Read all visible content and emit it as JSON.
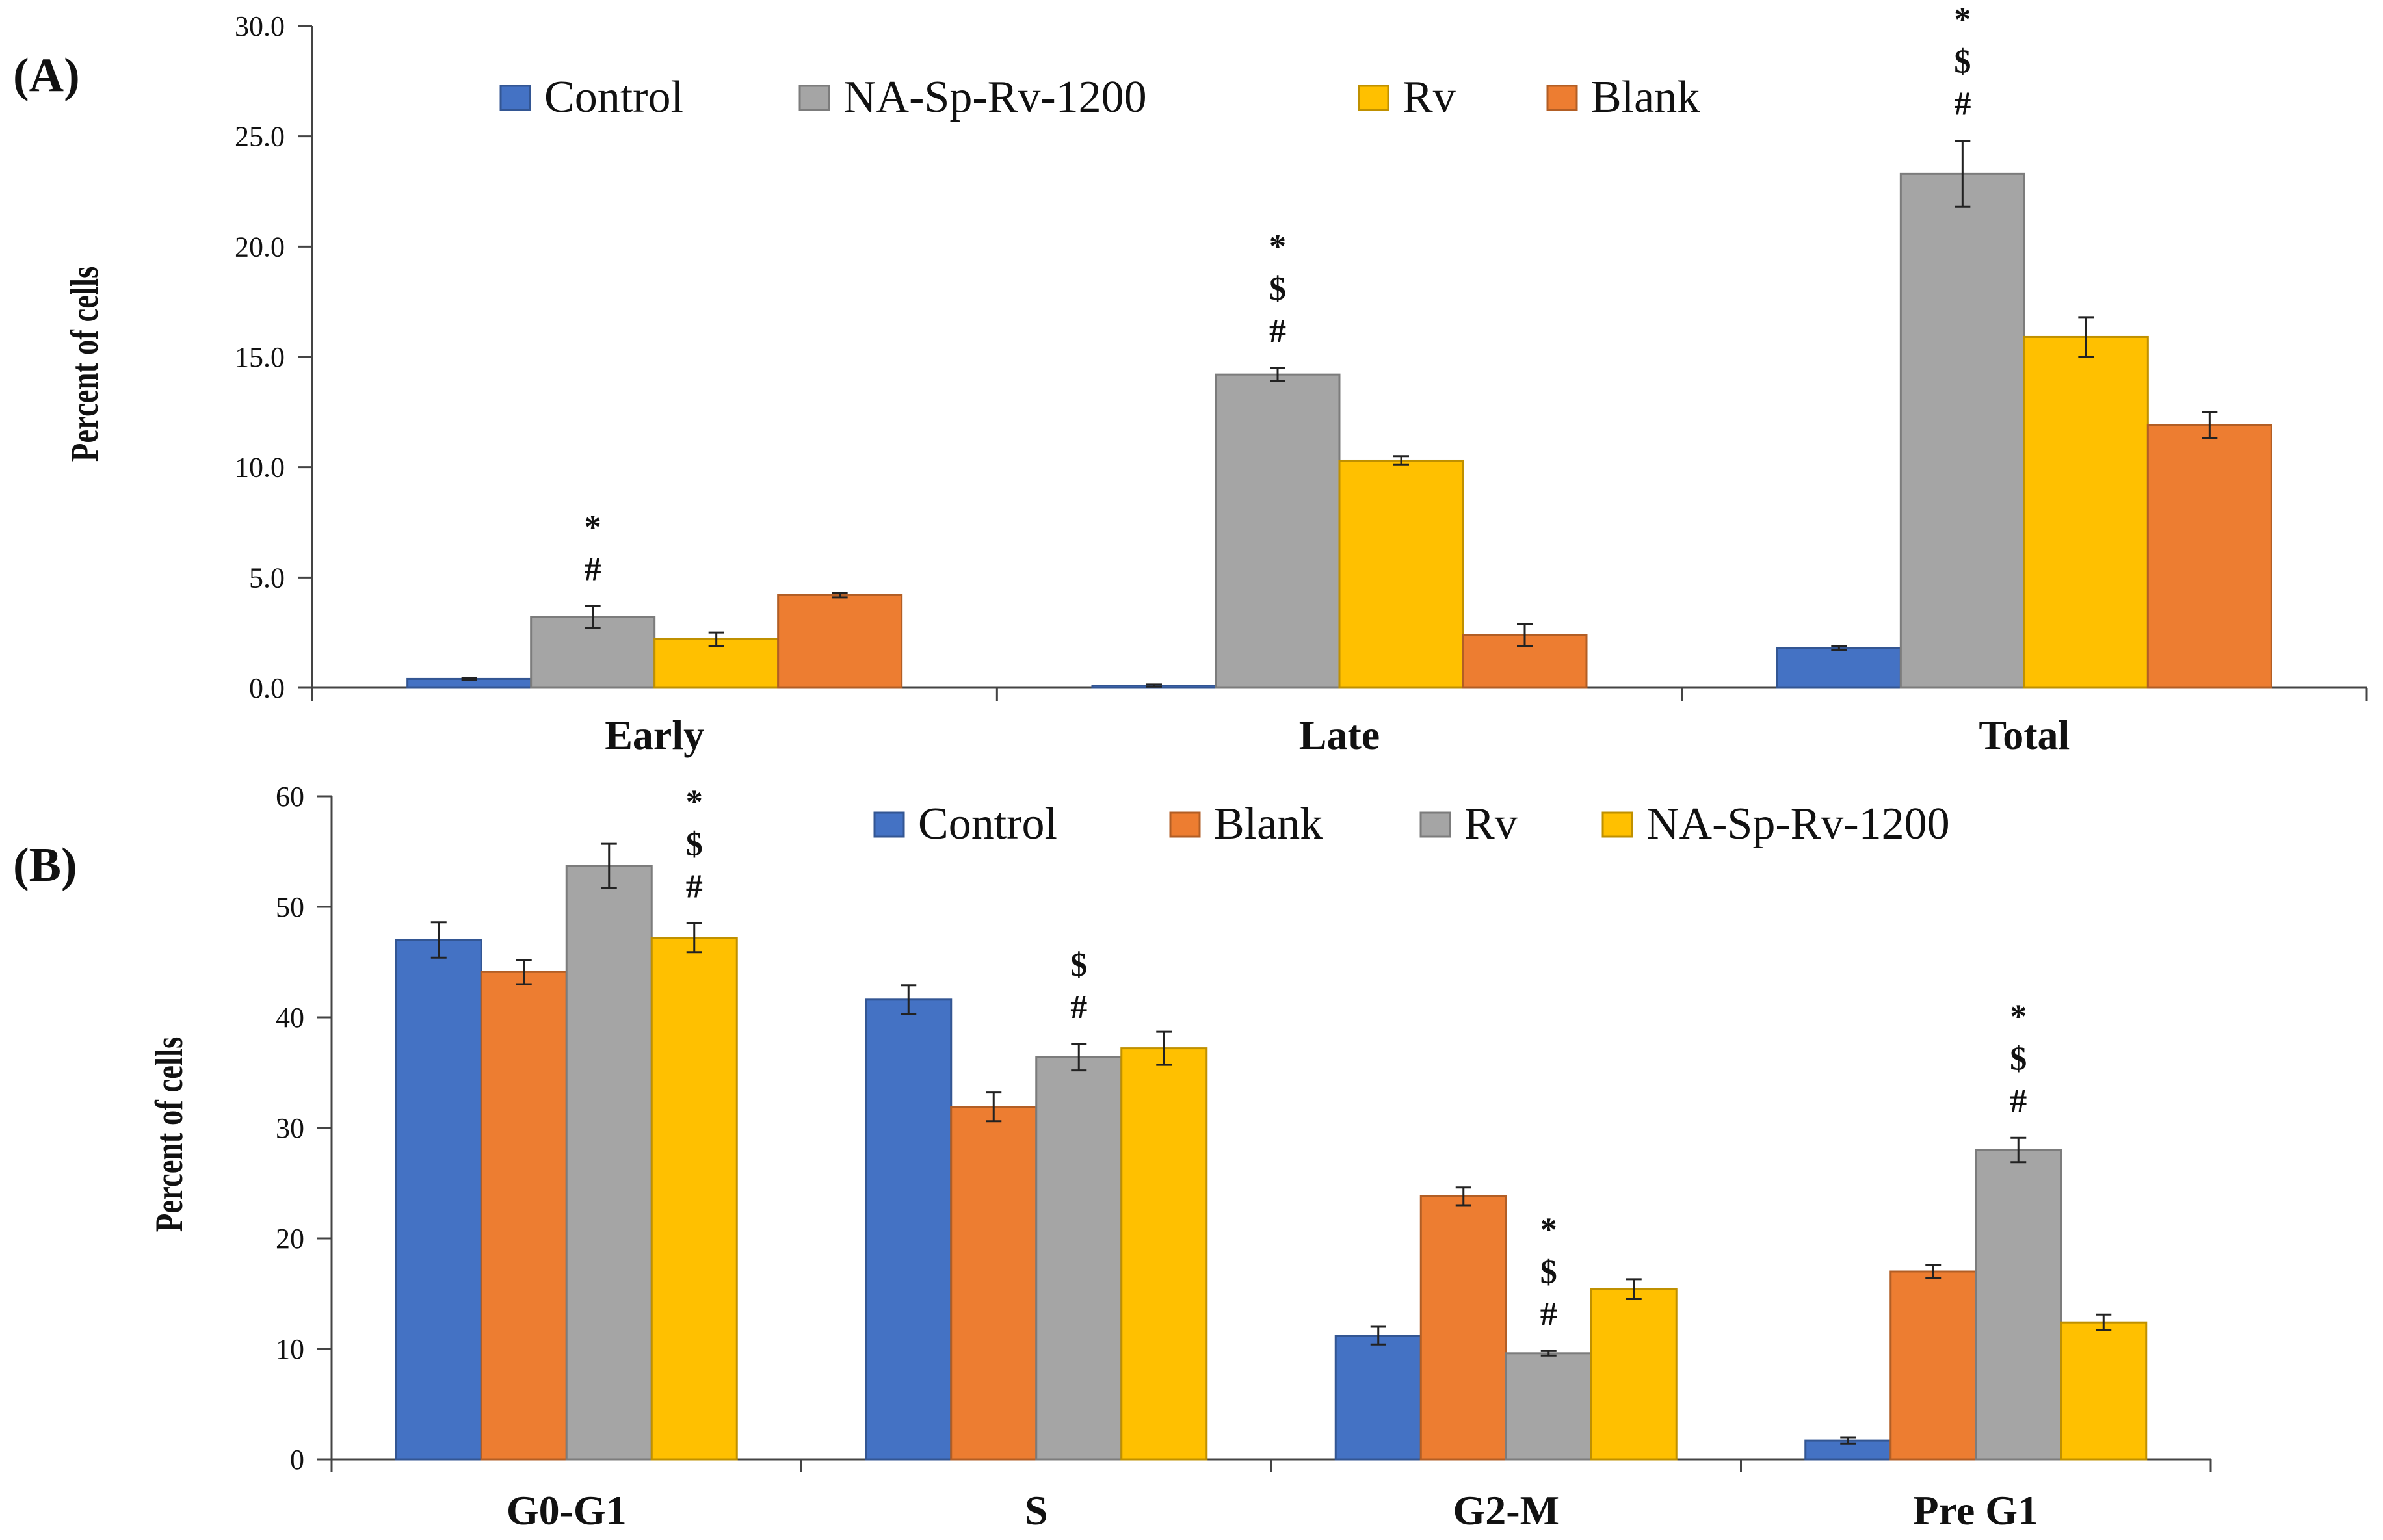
{
  "chart_data": [
    {
      "panel": "(A)",
      "type": "bar",
      "ylabel": "Percent of cells",
      "ylim": [
        0,
        30
      ],
      "ytick_labels": [
        "0.0",
        "5.0",
        "10.0",
        "15.0",
        "20.0",
        "25.0",
        "30.0"
      ],
      "yticks": [
        0,
        5,
        10,
        15,
        20,
        25,
        30
      ],
      "legend_position": "top",
      "categories": [
        "Early",
        "Late",
        "Total"
      ],
      "series": [
        {
          "name": "Control",
          "color": "#4472C4",
          "values": [
            0.4,
            0.1,
            1.8
          ],
          "errors": [
            0.05,
            0.05,
            0.1
          ]
        },
        {
          "name": "NA-Sp-Rv-1200",
          "color": "#A5A5A5",
          "values": [
            3.2,
            14.2,
            23.3
          ],
          "errors": [
            0.5,
            0.3,
            1.5
          ]
        },
        {
          "name": "Rv",
          "color": "#FFC000",
          "values": [
            2.2,
            10.3,
            15.9
          ],
          "errors": [
            0.3,
            0.2,
            0.9
          ]
        },
        {
          "name": "Blank",
          "color": "#ED7D31",
          "values": [
            4.2,
            2.4,
            11.9
          ],
          "errors": [
            0.1,
            0.5,
            0.6
          ]
        }
      ],
      "annotations": [
        {
          "category_index": 0,
          "series_index": 1,
          "marks": [
            "*",
            "#"
          ]
        },
        {
          "category_index": 1,
          "series_index": 1,
          "marks": [
            "*",
            "$",
            "#"
          ]
        },
        {
          "category_index": 2,
          "series_index": 1,
          "marks": [
            "*",
            "$",
            "#"
          ]
        }
      ]
    },
    {
      "panel": "(B)",
      "type": "bar",
      "ylabel": "Percent of cells",
      "ylim": [
        0,
        60
      ],
      "ytick_labels": [
        "0",
        "10",
        "20",
        "30",
        "40",
        "50",
        "60"
      ],
      "yticks": [
        0,
        10,
        20,
        30,
        40,
        50,
        60
      ],
      "legend_position": "top",
      "categories": [
        "G0-G1",
        "S",
        "G2-M",
        "Pre G1"
      ],
      "series": [
        {
          "name": "Control",
          "color": "#4472C4",
          "values": [
            47.0,
            41.6,
            11.2,
            1.7
          ],
          "errors": [
            1.6,
            1.3,
            0.8,
            0.3
          ]
        },
        {
          "name": "Blank",
          "color": "#ED7D31",
          "values": [
            44.1,
            31.9,
            23.8,
            17.0
          ],
          "errors": [
            1.1,
            1.3,
            0.8,
            0.6
          ]
        },
        {
          "name": "Rv",
          "color": "#A5A5A5",
          "values": [
            53.7,
            36.4,
            9.6,
            28.0
          ],
          "errors": [
            2.0,
            1.2,
            0.2,
            1.1
          ]
        },
        {
          "name": "NA-Sp-Rv-1200",
          "color": "#FFC000",
          "values": [
            47.2,
            37.2,
            15.4,
            12.4
          ],
          "errors": [
            1.3,
            1.5,
            0.9,
            0.7
          ]
        }
      ],
      "annotations": [
        {
          "category_index": 0,
          "series_index": 3,
          "marks": [
            "*",
            "$",
            "#"
          ]
        },
        {
          "category_index": 1,
          "series_index": 2,
          "marks": [
            "$",
            "#"
          ]
        },
        {
          "category_index": 2,
          "series_index": 2,
          "marks": [
            "*",
            "$",
            "#"
          ]
        },
        {
          "category_index": 3,
          "series_index": 2,
          "marks": [
            "*",
            "$",
            "#"
          ]
        }
      ]
    }
  ]
}
